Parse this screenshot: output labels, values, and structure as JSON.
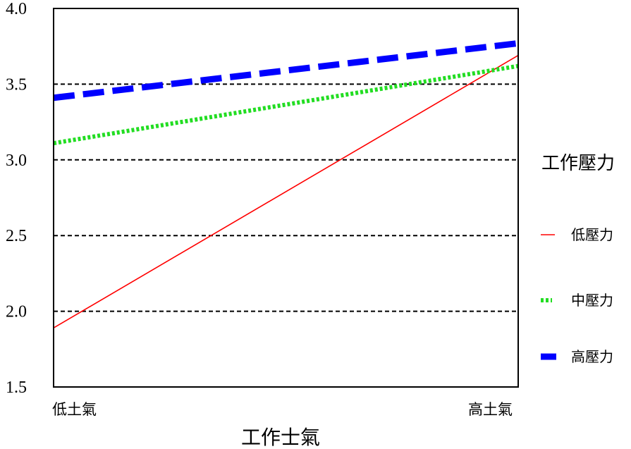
{
  "chart_data": {
    "type": "line",
    "categories": [
      "低土氣",
      "高土氣"
    ],
    "xlabel": "工作士氣",
    "ylabel": "",
    "ylim": [
      1.5,
      4.0
    ],
    "yticks": [
      "1.5",
      "2.0",
      "2.5",
      "3.0",
      "3.5",
      "4.0"
    ],
    "grid": "horizontal dashed",
    "legend": {
      "title": "工作壓力",
      "placement": "right"
    },
    "series": [
      {
        "name": "低壓力",
        "values": [
          1.89,
          3.69
        ],
        "color": "#ff0000",
        "style": "solid-thin"
      },
      {
        "name": "中壓力",
        "values": [
          3.11,
          3.62
        ],
        "color": "#22dd22",
        "style": "dotted"
      },
      {
        "name": "高壓力",
        "values": [
          3.41,
          3.77
        ],
        "color": "#0000ff",
        "style": "dashed-thick"
      }
    ]
  }
}
